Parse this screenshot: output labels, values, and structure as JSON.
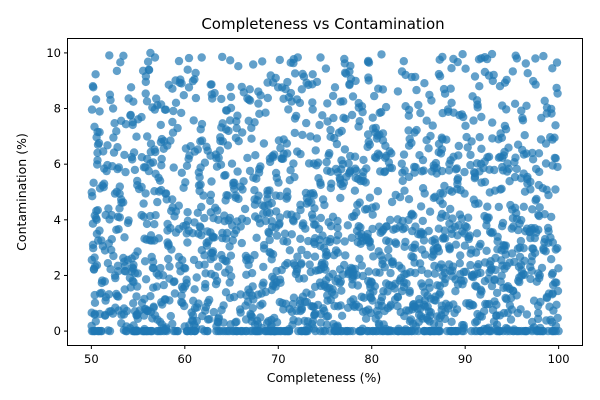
{
  "chart_data": {
    "type": "scatter",
    "title": "Completeness vs Contamination",
    "xlabel": "Completeness (%)",
    "ylabel": "Contamination (%)",
    "xlim": [
      47.5,
      102.5
    ],
    "ylim": [
      -0.5,
      10.5
    ],
    "xticks": [
      "50",
      "60",
      "70",
      "80",
      "90",
      "100"
    ],
    "yticks": [
      "0",
      "2",
      "4",
      "6",
      "8",
      "10"
    ],
    "grid": false,
    "legend": "none",
    "point_color": "#1f77b4",
    "point_alpha": 0.7,
    "x_range": [
      50,
      100
    ],
    "y_range": [
      0,
      10
    ],
    "n_points": 2000,
    "zero_contamination_points": 230,
    "distribution": "Completeness spread uniformly between 50 and 100; contamination concentrated at low values (dense 0-4), thinning toward 10, with a row of points at exactly 0"
  }
}
